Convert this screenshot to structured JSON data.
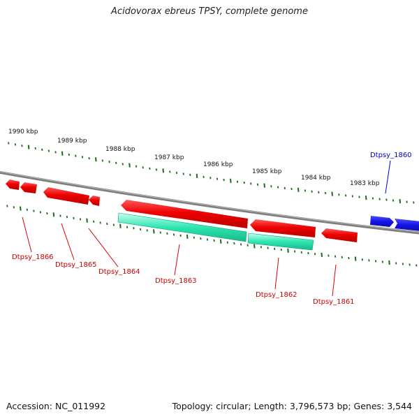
{
  "title": "Acidovorax ebreus TPSY, complete genome",
  "footer": {
    "accession": "Accession: NC_011992",
    "summary": "Topology: circular; Length: 3,796,573 bp; Genes: 3,544"
  },
  "colors": {
    "backbone": "#7a7a7a",
    "tick": "#1a6e1a",
    "gene_red": "#ee0000",
    "gene_green": "#22e3a8",
    "gene_blue": "#1515e6",
    "label_red": "#cc0000",
    "label_blue": "#0000cc"
  },
  "scale_labels": [
    {
      "text": "1990 kbp"
    },
    {
      "text": "1989 kbp"
    },
    {
      "text": "1988 kbp"
    },
    {
      "text": "1987 kbp"
    },
    {
      "text": "1986 kbp"
    },
    {
      "text": "1985 kbp"
    },
    {
      "text": "1984 kbp"
    },
    {
      "text": "1983 kbp"
    }
  ],
  "gene_labels": [
    {
      "text": "Dtpsy_1866",
      "color": "red"
    },
    {
      "text": "Dtpsy_1865",
      "color": "red"
    },
    {
      "text": "Dtpsy_1864",
      "color": "red"
    },
    {
      "text": "Dtpsy_1863",
      "color": "red"
    },
    {
      "text": "Dtpsy_1862",
      "color": "red"
    },
    {
      "text": "Dtpsy_1861",
      "color": "red"
    },
    {
      "text": "Dtpsy_1860",
      "color": "blue"
    }
  ]
}
